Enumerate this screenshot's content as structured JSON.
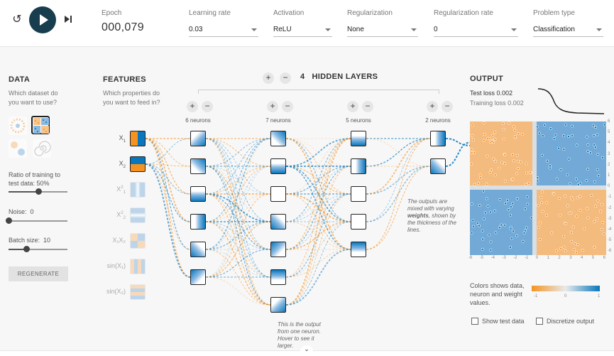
{
  "controls": {
    "reset_icon": "reset-icon",
    "play_icon": "play-icon",
    "step_icon": "step-forward-icon",
    "epoch_label": "Epoch",
    "epoch_value": "000,079",
    "learning_rate": {
      "label": "Learning rate",
      "value": "0.03"
    },
    "activation": {
      "label": "Activation",
      "value": "ReLU"
    },
    "regularization": {
      "label": "Regularization",
      "value": "None"
    },
    "regularization_rate": {
      "label": "Regularization rate",
      "value": "0"
    },
    "problem_type": {
      "label": "Problem type",
      "value": "Classification"
    }
  },
  "data_panel": {
    "title": "DATA",
    "question": "Which dataset do you want to use?",
    "datasets": [
      "circle",
      "xor",
      "gaussian",
      "spiral"
    ],
    "selected_dataset": "xor",
    "ratio_label": "Ratio of training to test data:",
    "ratio_value": "50%",
    "ratio": 0.5,
    "noise_label": "Noise:",
    "noise_value": "0",
    "noise": 0,
    "batch_label": "Batch size:",
    "batch_value": "10",
    "batch_fraction": 0.3,
    "regenerate_label": "REGENERATE"
  },
  "features_panel": {
    "title": "FEATURES",
    "question": "Which properties do you want to feed in?",
    "features": [
      {
        "label": "X",
        "sub": "1",
        "sup": "",
        "active": true
      },
      {
        "label": "X",
        "sub": "2",
        "sup": "",
        "active": true
      },
      {
        "label": "X",
        "sub": "1",
        "sup": "2",
        "active": false
      },
      {
        "label": "X",
        "sub": "2",
        "sup": "2",
        "active": false
      },
      {
        "label": "X₁X₂",
        "sub": "",
        "sup": "",
        "active": false
      },
      {
        "label": "sin(X₁)",
        "sub": "",
        "sup": "",
        "active": false
      },
      {
        "label": "sin(X₂)",
        "sub": "",
        "sup": "",
        "active": false
      }
    ]
  },
  "network": {
    "add_layer_label": "+",
    "remove_layer_label": "−",
    "layer_count": "4",
    "hidden_layers_label": "HIDDEN LAYERS",
    "layers": [
      {
        "neurons_label": "6 neurons",
        "count": 6
      },
      {
        "neurons_label": "7 neurons",
        "count": 7
      },
      {
        "neurons_label": "5 neurons",
        "count": 5
      },
      {
        "neurons_label": "2 neurons",
        "count": 2
      }
    ],
    "neuron_note": "This is the output from one neuron. Hover to see it larger.",
    "weights_note_pre": "The outputs are mixed with varying ",
    "weights_note_bold": "weights",
    "weights_note_post": ", shown by the thickness of the lines."
  },
  "output_panel": {
    "title": "OUTPUT",
    "test_loss": "Test loss 0.002",
    "training_loss": "Training loss 0.002",
    "x_ticks": [
      "-6",
      "-5",
      "-4",
      "-3",
      "-2",
      "-1",
      "0",
      "1",
      "2",
      "3",
      "4",
      "5",
      "6"
    ],
    "y_ticks": [
      "6",
      "5",
      "4",
      "3",
      "2",
      "1",
      "0",
      "-1",
      "-2",
      "-3",
      "-4",
      "-5",
      "-6"
    ],
    "legend_text": "Colors shows data, neuron and weight values.",
    "legend_ticks": [
      "-1",
      "0",
      "1"
    ],
    "show_test_label": "Show test data",
    "discretize_label": "Discretize output",
    "colors": {
      "orange": "#f59322",
      "blue": "#0877bd",
      "neutral": "#e8eaeb"
    }
  },
  "footer": {
    "chevron_icon": "chevron-down-icon"
  }
}
